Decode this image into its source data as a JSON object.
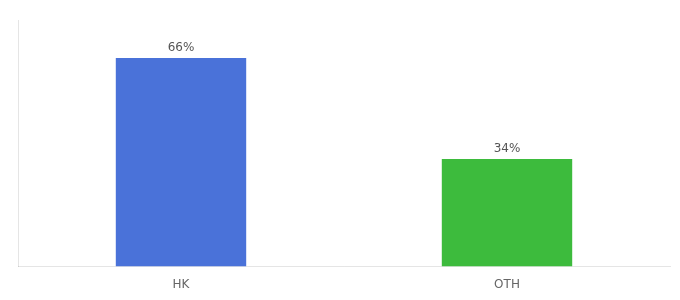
{
  "chart_data": {
    "type": "bar",
    "categories": [
      "HK",
      "OTH"
    ],
    "values": [
      66,
      34
    ],
    "value_labels": [
      "66%",
      "34%"
    ],
    "colors": [
      "#4a72d9",
      "#3dbb3d"
    ],
    "ylim": [
      0,
      78
    ],
    "grid": false,
    "data_labels": true,
    "tick_labels": "x"
  }
}
